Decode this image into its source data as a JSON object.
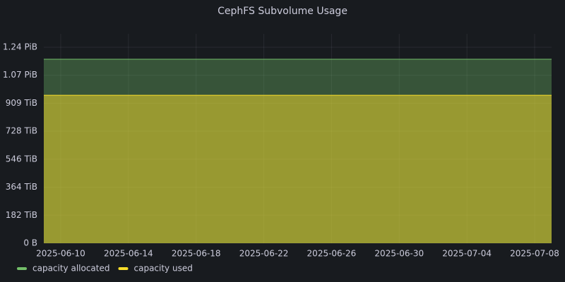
{
  "chart_data": {
    "type": "area",
    "title": "CephFS Subvolume Usage",
    "x": [
      "2025-06-09",
      "2025-07-09"
    ],
    "xlim": [
      "2025-06-09",
      "2025-07-09"
    ],
    "xticks": [
      "2025-06-10",
      "2025-06-14",
      "2025-06-18",
      "2025-06-22",
      "2025-06-26",
      "2025-06-30",
      "2025-07-04",
      "2025-07-08"
    ],
    "ylim": [
      0,
      1360
    ],
    "yticks": [
      {
        "value": 0,
        "label": "0 B"
      },
      {
        "value": 182,
        "label": "182 TiB"
      },
      {
        "value": 364,
        "label": "364 TiB"
      },
      {
        "value": 546,
        "label": "546 TiB"
      },
      {
        "value": 728,
        "label": "728 TiB"
      },
      {
        "value": 909,
        "label": "909 TiB"
      },
      {
        "value": 1091,
        "label": "1.07 PiB"
      },
      {
        "value": 1273,
        "label": "1.24 PiB"
      }
    ],
    "grid": true,
    "legend": "bottom-left",
    "series": [
      {
        "name": "capacity allocated",
        "color": "#73bf69",
        "values": [
          1195,
          1195
        ]
      },
      {
        "name": "capacity used",
        "color": "#fade2a",
        "values": [
          961,
          961
        ]
      }
    ]
  }
}
